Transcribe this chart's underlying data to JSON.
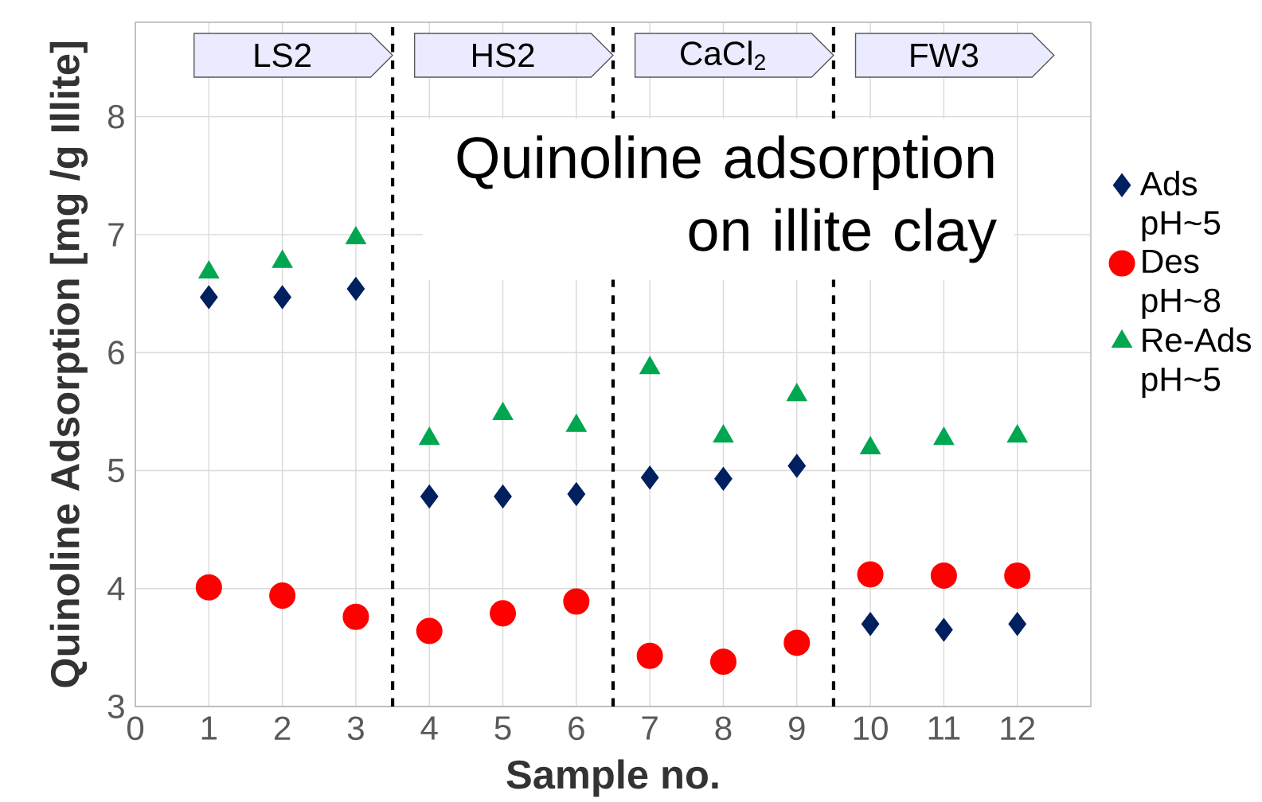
{
  "chart_data": {
    "type": "scatter",
    "title": "Quinoline adsorption on illite clay",
    "xlabel": "Sample no.",
    "ylabel": "Quinoline Adsorption [mg /g Illite]",
    "x": [
      1,
      2,
      3,
      4,
      5,
      6,
      7,
      8,
      9,
      10,
      11,
      12
    ],
    "series": [
      {
        "name": "Ads pH~5",
        "color": "#002060",
        "marker": "diamond",
        "values": [
          6.47,
          6.47,
          6.54,
          4.78,
          4.78,
          4.8,
          4.94,
          4.93,
          5.04,
          3.7,
          3.65,
          3.7
        ]
      },
      {
        "name": "Des pH~8",
        "color": "#ff0000",
        "marker": "circle",
        "values": [
          4.01,
          3.94,
          3.76,
          3.64,
          3.79,
          3.89,
          3.43,
          3.38,
          3.54,
          4.12,
          4.11,
          4.11
        ]
      },
      {
        "name": "Re-Ads pH~5",
        "color": "#00a650",
        "marker": "triangle",
        "values": [
          6.68,
          6.77,
          6.97,
          5.27,
          5.48,
          5.38,
          5.87,
          5.29,
          5.64,
          5.19,
          5.27,
          5.29
        ]
      }
    ],
    "annotations": [
      "LS2",
      "HS2",
      "CaCl$_{2}$",
      "FW3"
    ],
    "ref_lines": [
      {
        "axis": "x",
        "value": 3.5,
        "color": "#000000",
        "line_style": "dashed"
      },
      {
        "axis": "x",
        "value": 6.5,
        "color": "#000000",
        "line_style": "dashed"
      },
      {
        "axis": "x",
        "value": 9.5,
        "color": "#000000",
        "line_style": "dashed"
      }
    ],
    "xlim": [
      0,
      13
    ],
    "ylim": [
      3,
      8.8
    ],
    "xticks": [
      0,
      1,
      2,
      3,
      4,
      5,
      6,
      7,
      8,
      9,
      10,
      11,
      12
    ],
    "yticks": [
      3,
      4,
      5,
      6,
      7,
      8
    ],
    "grid": true,
    "legend": "right"
  }
}
